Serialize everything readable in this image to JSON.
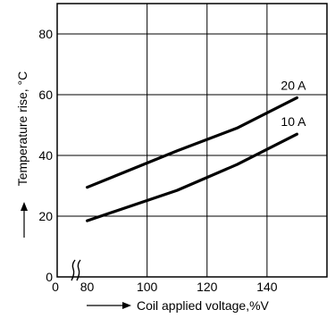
{
  "chart_data": {
    "type": "line",
    "title": "",
    "xlabel": "Coil applied voltage,%V",
    "ylabel": "Temperature rise, °C",
    "x_break_label": "0",
    "xlim": [
      70,
      160
    ],
    "ylim": [
      0,
      90
    ],
    "xticks": [
      80,
      100,
      120,
      140
    ],
    "yticks": [
      0,
      20,
      40,
      60,
      80
    ],
    "grid": true,
    "series": [
      {
        "name": "20 A",
        "x": [
          80,
          110,
          130,
          150
        ],
        "y": [
          29.5,
          41.5,
          49,
          59
        ]
      },
      {
        "name": "10 A",
        "x": [
          80,
          110,
          130,
          150
        ],
        "y": [
          18.5,
          28.5,
          37,
          47
        ]
      }
    ]
  }
}
